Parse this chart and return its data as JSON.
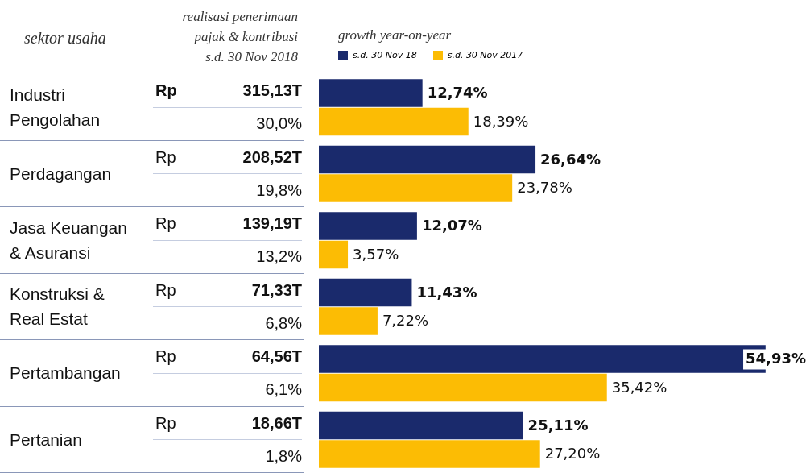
{
  "chart_data": {
    "type": "bar",
    "orientation": "horizontal",
    "ylabel": "sektor usaha",
    "legend_title": "growth year-on-year",
    "legend": "top left",
    "tick_labels": "y",
    "categories": [
      "Industri Pengolahan",
      "Perdagangan",
      "Jasa Keuangan & Asuransi",
      "Konstruksi & Real Estat",
      "Pertambangan",
      "Pertanian"
    ],
    "series": [
      {
        "name": "s.d. 30 Nov 18",
        "color": "#1a2a6c",
        "values": [
          12.74,
          26.64,
          12.07,
          11.43,
          54.93,
          25.11
        ],
        "value_labels": [
          "12,74%",
          "26,64%",
          "12,07%",
          "11,43%",
          "54,93%",
          "25,11%"
        ]
      },
      {
        "name": "s.d. 30 Nov 2017",
        "color": "#fcbc04",
        "values": [
          18.39,
          23.78,
          3.57,
          7.22,
          35.42,
          27.2
        ],
        "value_labels": [
          "18,39%",
          "23,78%",
          "3,57%",
          "7,22%",
          "35,42%",
          "27,20%"
        ]
      }
    ],
    "annotations": [
      "realisasi penerimaan pajak & kontribusi s.d. 30 Nov 2018",
      "Rp 315,13T",
      "30,0%",
      "Rp 208,52T",
      "19,8%",
      "Rp 139,19T",
      "13,2%",
      "Rp 71,33T",
      "6,8%",
      "Rp 64,56T",
      "6,1%",
      "Rp 18,66T",
      "1,8%"
    ]
  }
}
